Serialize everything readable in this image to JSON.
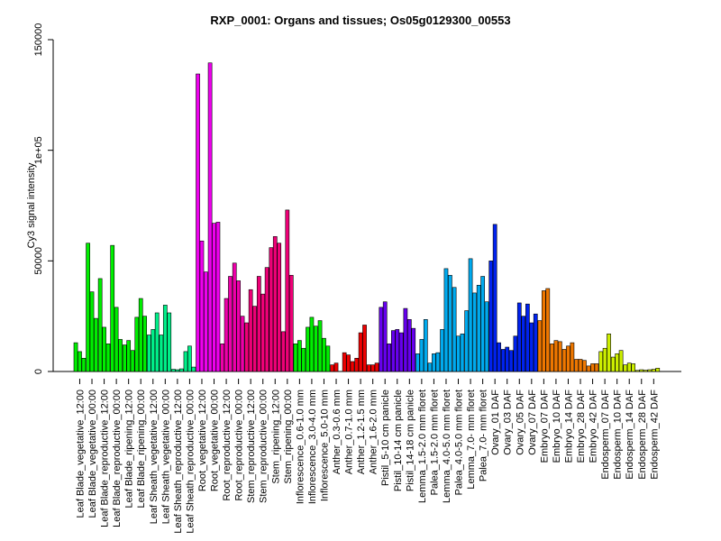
{
  "chart_data": {
    "type": "bar",
    "title": "RXP_0001: Organs and tissues; Os05g0129300_00553",
    "xlabel": "",
    "ylabel": "Cy3 signal intensity",
    "ylim": [
      0,
      150000
    ],
    "y_ticks": [
      {
        "value": 0,
        "label": "0"
      },
      {
        "value": 50000,
        "label": "50000"
      },
      {
        "value": 100000,
        "label": "1e+05"
      },
      {
        "value": 150000,
        "label": "150000"
      }
    ],
    "grid": false,
    "legend": "none",
    "groups": [
      {
        "label": "Leaf Blade_vegetative_12:00",
        "color": "#00ee00",
        "values": [
          13000,
          9000,
          6000
        ]
      },
      {
        "label": "Leaf Blade_vegetative_00:00",
        "color": "#00ee00",
        "values": [
          58000,
          36000,
          24000
        ]
      },
      {
        "label": "Leaf Blade_reproductive_12:00",
        "color": "#00ee00",
        "values": [
          42000,
          20000,
          12500
        ]
      },
      {
        "label": "Leaf Blade_reproductive_00:00",
        "color": "#00ee00",
        "values": [
          57000,
          29000,
          14500
        ]
      },
      {
        "label": "Leaf Blade_ripening_12:00",
        "color": "#00ee00",
        "values": [
          12000,
          14000,
          9500
        ]
      },
      {
        "label": "Leaf Blade_ripening_00:00",
        "color": "#00ee00",
        "values": [
          24500,
          33000,
          25000
        ]
      },
      {
        "label": "Leaf Sheath_vegetative_12:00",
        "color": "#00ee88",
        "values": [
          16500,
          19000,
          26500
        ]
      },
      {
        "label": "Leaf Sheath_vegetative_00:00",
        "color": "#00ee88",
        "values": [
          16500,
          30000,
          26500
        ]
      },
      {
        "label": "Leaf Sheath_reproductive_12:00",
        "color": "#00ee88",
        "values": [
          1000,
          800,
          1200
        ]
      },
      {
        "label": "Leaf Sheath_reproductive_00:00",
        "color": "#00ee88",
        "values": [
          9000,
          11500,
          2000
        ]
      },
      {
        "label": "Root_vegetative_12:00",
        "color": "#ee00ee",
        "values": [
          134500,
          59000,
          45000
        ]
      },
      {
        "label": "Root_vegetative_00:00",
        "color": "#ee00ee",
        "values": [
          139500,
          67000,
          67500
        ]
      },
      {
        "label": "Root_reproductive_12:00",
        "color": "#ee00aa",
        "values": [
          12500,
          33000,
          43000
        ]
      },
      {
        "label": "Root_reproductive_00:00",
        "color": "#ee00aa",
        "values": [
          49000,
          41000,
          25000
        ]
      },
      {
        "label": "Stem_reproductive_12:00",
        "color": "#ee0077",
        "values": [
          22000,
          37000,
          29500
        ]
      },
      {
        "label": "Stem_reproductive_00:00",
        "color": "#ee0077",
        "values": [
          43000,
          35000,
          47000
        ]
      },
      {
        "label": "Stem_ripening_12:00",
        "color": "#ee0077",
        "values": [
          56000,
          61000,
          58000
        ]
      },
      {
        "label": "Stem_ripening_00:00",
        "color": "#ee0077",
        "values": [
          18000,
          73000,
          43500
        ]
      },
      {
        "label": "Inflorescence_0.6-1.0 mm",
        "color": "#00ee00",
        "values": [
          12500,
          14000,
          10500
        ]
      },
      {
        "label": "Inflorescence_3.0-4.0 mm",
        "color": "#00ee00",
        "values": [
          20000,
          24500,
          20500
        ]
      },
      {
        "label": "Inflorescence_5.0-10 mm",
        "color": "#00ee00",
        "values": [
          23000,
          15000,
          11500
        ]
      },
      {
        "label": "Anther_0.3-0.6 mm",
        "color": "#ee0000",
        "values": [
          3000,
          3800,
          0
        ]
      },
      {
        "label": "Anther_0.7-1.0 mm",
        "color": "#ee0000",
        "values": [
          8500,
          7500,
          4500
        ]
      },
      {
        "label": "Anther_1.2-1.5 mm",
        "color": "#ee0000",
        "values": [
          6000,
          17500,
          21000
        ]
      },
      {
        "label": "Anther_1.6-2.0 mm",
        "color": "#ee0000",
        "values": [
          3000,
          3000,
          3800
        ]
      },
      {
        "label": "Pistil_5-10 cm panicle",
        "color": "#6600ee",
        "values": [
          29000,
          31500,
          12500
        ]
      },
      {
        "label": "Pistil_10-14 cm panicle",
        "color": "#6600ee",
        "values": [
          18500,
          19000,
          17500
        ]
      },
      {
        "label": "Pistil_14-18 cm panicle",
        "color": "#6600ee",
        "values": [
          28500,
          23500,
          19500
        ]
      },
      {
        "label": "Lemma_1.5-2.0 mm floret",
        "color": "#00aaee",
        "values": [
          8000,
          14500,
          23500
        ]
      },
      {
        "label": "Palea_1.5-2.0 mm floret",
        "color": "#00aaee",
        "values": [
          3800,
          8000,
          8500
        ]
      },
      {
        "label": "Lemma_4.0-5.0 mm floret",
        "color": "#00aaee",
        "values": [
          19000,
          46500,
          43500
        ]
      },
      {
        "label": "Palea_4.0-5.0 mm floret",
        "color": "#00aaee",
        "values": [
          38000,
          16000,
          17000
        ]
      },
      {
        "label": "Lemma_7.0- mm floret",
        "color": "#00aaee",
        "values": [
          27500,
          51000,
          35500
        ]
      },
      {
        "label": "Palea_7.0- mm floret",
        "color": "#00aaee",
        "values": [
          39000,
          43000,
          31500
        ]
      },
      {
        "label": "Ovary_01 DAF",
        "color": "#0022ee",
        "values": [
          50000,
          66500,
          13000
        ]
      },
      {
        "label": "Ovary_03 DAF",
        "color": "#0022ee",
        "values": [
          10000,
          11000,
          9500
        ]
      },
      {
        "label": "Ovary_05 DAF",
        "color": "#0022ee",
        "values": [
          16000,
          31000,
          25000
        ]
      },
      {
        "label": "Ovary_07 DAF",
        "color": "#0022ee",
        "values": [
          30500,
          22000,
          26000
        ]
      },
      {
        "label": "Embryo_07 DAF",
        "color": "#ee7700",
        "values": [
          23000,
          36500,
          37500
        ]
      },
      {
        "label": "Embryo_10 DAF",
        "color": "#ee7700",
        "values": [
          12500,
          14000,
          13500
        ]
      },
      {
        "label": "Embryo_14 DAF",
        "color": "#ee7700",
        "values": [
          10000,
          11500,
          13000
        ]
      },
      {
        "label": "Embryo_28 DAF",
        "color": "#ee7700",
        "values": [
          5500,
          5500,
          5000
        ]
      },
      {
        "label": "Embryo_42 DAF",
        "color": "#ee7700",
        "values": [
          2500,
          3500,
          3500
        ]
      },
      {
        "label": "Endosperm_07 DAF",
        "color": "#ccee00",
        "values": [
          9000,
          10500,
          17000
        ]
      },
      {
        "label": "Endosperm_10 DAF",
        "color": "#ccee00",
        "values": [
          6500,
          8000,
          9500
        ]
      },
      {
        "label": "Endosperm_14 DAF",
        "color": "#ccee00",
        "values": [
          3000,
          3800,
          3500
        ]
      },
      {
        "label": "Endosperm_28 DAF",
        "color": "#ccee00",
        "values": [
          500,
          800,
          600
        ]
      },
      {
        "label": "Endosperm_42 DAF",
        "color": "#ccee00",
        "values": [
          800,
          1000,
          1500
        ]
      }
    ]
  }
}
